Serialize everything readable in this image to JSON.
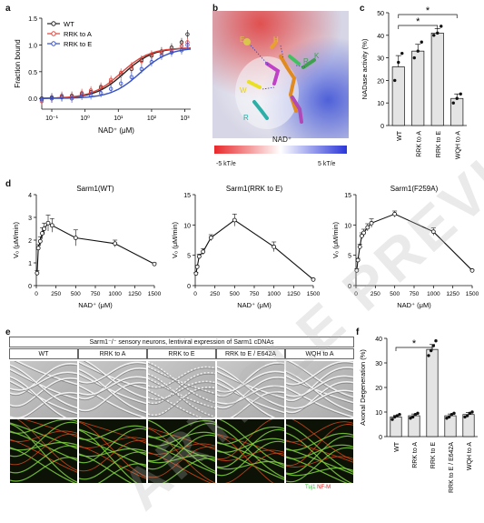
{
  "panels": {
    "a": "a",
    "b": "b",
    "c": "c",
    "d": "d",
    "e": "e",
    "f": "f"
  },
  "colors": {
    "wt": "#222222",
    "rrk_a": "#e0443a",
    "rrk_e": "#3550c8",
    "bar_fill": "#e4e4e4",
    "tuj1": "#2fbf2f",
    "nfm": "#e02020"
  },
  "panel_a": {
    "ylabel": "Fraction bound",
    "xlabel": "NAD⁺ (μM)",
    "yticks": [
      "0.0",
      "0.5",
      "1.0",
      "1.5"
    ],
    "xticks": [
      "10⁻¹",
      "10⁰",
      "10¹",
      "10²",
      "10³"
    ],
    "legend": [
      "WT",
      "RRK to A",
      "RRK to E"
    ]
  },
  "panel_b": {
    "residue_labels": [
      "E",
      "H",
      "K",
      "R",
      "W",
      "R",
      "R",
      "R",
      "Q"
    ],
    "ligand": "NAD⁺",
    "scale_min": "-5 kT/e",
    "scale_max": "5 kT/e"
  },
  "panel_c": {
    "ylabel": "NADase activity (%)",
    "yticks": [
      "0",
      "10",
      "20",
      "30",
      "40",
      "50"
    ],
    "categories": [
      "WT",
      "RRK to A",
      "RRK to E",
      "WQH to A"
    ],
    "sig": [
      "*",
      "*"
    ]
  },
  "panel_d": {
    "ylabel": "V₀ (μM/min)",
    "xlabel": "NAD⁺ (μM)",
    "charts": [
      {
        "title": "Sarm1(WT)",
        "yticks": [
          "0",
          "1",
          "2",
          "3",
          "4"
        ],
        "xticks": [
          "0",
          "250",
          "500",
          "750",
          "1000",
          "1250",
          "1500"
        ]
      },
      {
        "title": "Sarm1(RRK to E)",
        "yticks": [
          "0",
          "5",
          "10",
          "15"
        ],
        "xticks": [
          "0",
          "250",
          "500",
          "750",
          "1000",
          "1250",
          "1500"
        ]
      },
      {
        "title": "Sarm1(F259A)",
        "yticks": [
          "0",
          "5",
          "10",
          "15"
        ],
        "xticks": [
          "0",
          "250",
          "500",
          "750",
          "1000",
          "1250",
          "1500"
        ]
      }
    ]
  },
  "panel_e": {
    "header": "Sarm1⁻/⁻ sensory neurons, lentiviral expression of Sarm1 cDNAs",
    "columns": [
      "WT",
      "RRK to A",
      "RRK to E",
      "RRK to E / E642A",
      "WQH to A"
    ],
    "stain1": "Tuj1",
    "stain2": "NF-M"
  },
  "panel_f": {
    "ylabel": "Axonal Degeneration (%)",
    "yticks": [
      "0",
      "10",
      "20",
      "30",
      "40"
    ],
    "categories": [
      "WT",
      "RRK to A",
      "RRK to E",
      "RRK to E / E642A",
      "WQH to A"
    ],
    "sig": "*"
  },
  "watermark": "ARTICLE PREVIEW",
  "chart_data": [
    {
      "type": "scatter",
      "xscale": "log",
      "xlim": [
        0.05,
        1500
      ],
      "ylim": [
        -0.2,
        1.5
      ],
      "ylabel": "Fraction bound",
      "xlabel": "NAD⁺ (μM)",
      "series": [
        {
          "name": "WT",
          "x": [
            0.05,
            0.1,
            0.2,
            0.4,
            0.8,
            1.5,
            3,
            6,
            12,
            25,
            50,
            100,
            200,
            400,
            800,
            1200
          ],
          "y": [
            0.0,
            0.02,
            0.03,
            0.05,
            0.08,
            0.12,
            0.2,
            0.3,
            0.45,
            0.55,
            0.72,
            0.8,
            0.88,
            0.95,
            1.05,
            1.2
          ],
          "fit_top": 0.95,
          "fit_kd": 15
        },
        {
          "name": "RRK to A",
          "x": [
            0.05,
            0.1,
            0.2,
            0.4,
            0.8,
            1.5,
            3,
            6,
            12,
            25,
            50,
            100,
            200,
            400,
            800,
            1200
          ],
          "y": [
            -0.05,
            0.0,
            0.05,
            0.03,
            0.1,
            0.15,
            0.22,
            0.35,
            0.48,
            0.6,
            0.7,
            0.82,
            0.85,
            0.9,
            0.98,
            1.05
          ],
          "fit_top": 0.95,
          "fit_kd": 12
        },
        {
          "name": "RRK to E",
          "x": [
            0.05,
            0.1,
            0.2,
            0.4,
            0.8,
            1.5,
            3,
            6,
            12,
            25,
            50,
            100,
            200,
            400,
            800,
            1200
          ],
          "y": [
            -0.02,
            0.0,
            0.02,
            0.0,
            0.05,
            0.06,
            0.1,
            0.18,
            0.28,
            0.4,
            0.55,
            0.68,
            0.8,
            0.86,
            0.9,
            1.0
          ],
          "fit_top": 0.95,
          "fit_kd": 45
        }
      ]
    },
    {
      "type": "bar",
      "categories": [
        "WT",
        "RRK to A",
        "RRK to E",
        "WQH to A"
      ],
      "values": [
        26,
        33,
        41,
        12
      ],
      "errors": [
        5,
        3,
        2,
        2
      ],
      "points": [
        [
          20,
          28,
          32
        ],
        [
          30,
          33,
          37
        ],
        [
          40,
          41,
          44
        ],
        [
          10,
          12,
          14
        ]
      ],
      "ylim": [
        0,
        50
      ],
      "ylabel": "NADase activity (%)"
    },
    {
      "type": "line",
      "title": "Sarm1(WT)",
      "x": [
        10,
        25,
        50,
        75,
        100,
        150,
        200,
        500,
        1000,
        1500
      ],
      "y": [
        0.55,
        1.65,
        1.95,
        2.3,
        2.5,
        2.75,
        2.65,
        2.1,
        1.85,
        0.95
      ],
      "err": [
        0.1,
        0.15,
        0.2,
        0.25,
        0.25,
        0.35,
        0.3,
        0.35,
        0.15,
        0.05
      ],
      "ylim": [
        0,
        4
      ],
      "xlim": [
        0,
        1500
      ]
    },
    {
      "type": "line",
      "title": "Sarm1(RRK to E)",
      "x": [
        10,
        25,
        50,
        100,
        200,
        500,
        1000,
        1500
      ],
      "y": [
        2.0,
        3.1,
        4.8,
        5.6,
        7.9,
        10.8,
        6.4,
        1.0
      ],
      "err": [
        0.2,
        0.2,
        0.4,
        0.5,
        0.5,
        1.0,
        0.8,
        0.1
      ],
      "ylim": [
        0,
        15
      ],
      "xlim": [
        0,
        1500
      ]
    },
    {
      "type": "line",
      "title": "Sarm1(F259A)",
      "x": [
        10,
        25,
        50,
        75,
        100,
        150,
        200,
        500,
        1000,
        1500
      ],
      "y": [
        2.5,
        4.2,
        6.4,
        8.2,
        8.7,
        9.6,
        10.3,
        11.8,
        8.9,
        2.5
      ],
      "err": [
        0.3,
        0.3,
        0.4,
        0.5,
        0.6,
        0.6,
        0.7,
        0.5,
        0.6,
        0.1
      ],
      "ylim": [
        0,
        15
      ],
      "xlim": [
        0,
        1500
      ]
    },
    {
      "type": "bar",
      "categories": [
        "WT",
        "RRK to A",
        "RRK to E",
        "RRK to E / E642A",
        "WQH to A"
      ],
      "values": [
        8,
        8.5,
        35.5,
        8.5,
        9
      ],
      "errors": [
        0.6,
        0.7,
        2,
        0.7,
        0.8
      ],
      "points": [
        [
          7,
          8,
          8.5,
          9
        ],
        [
          7.5,
          8,
          9,
          9.5
        ],
        [
          33,
          35,
          37,
          39
        ],
        [
          7.5,
          8,
          9,
          9.5
        ],
        [
          8,
          8.5,
          9.5,
          10
        ]
      ],
      "ylim": [
        0,
        40
      ],
      "ylabel": "Axonal Degeneration (%)"
    }
  ]
}
